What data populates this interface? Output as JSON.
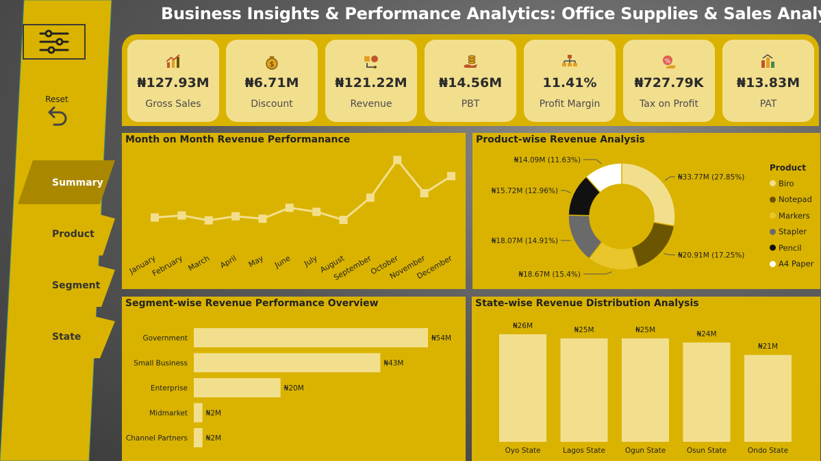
{
  "header": {
    "title": "Business Insights & Performance Analytics: Office Supplies & Sales Analysis"
  },
  "sidebar": {
    "filter_icon": "sliders-icon",
    "reset_label": "Reset",
    "reset_icon": "undo-arrow-icon",
    "nav": [
      {
        "label": "Summary",
        "active": true
      },
      {
        "label": "Product",
        "active": false
      },
      {
        "label": "Segment",
        "active": false
      },
      {
        "label": "State",
        "active": false
      }
    ]
  },
  "kpis": [
    {
      "value": "₦127.93M",
      "label": "Gross Sales",
      "icon": "growth-chart-icon"
    },
    {
      "value": "₦6.71M",
      "label": "Discount",
      "icon": "money-bag-icon"
    },
    {
      "value": "₦121.22M",
      "label": "Revenue",
      "icon": "revenue-flow-icon"
    },
    {
      "value": "₦14.56M",
      "label": "PBT",
      "icon": "coins-hand-icon"
    },
    {
      "value": "11.41%",
      "label": "Profit Margin",
      "icon": "hierarchy-icon"
    },
    {
      "value": "₦727.79K",
      "label": "Tax on Profit",
      "icon": "tax-icon"
    },
    {
      "value": "₦13.83M",
      "label": "PAT",
      "icon": "profit-bars-icon"
    }
  ],
  "colors": {
    "background_accent": "#dab300",
    "card": "#f2df8e",
    "mark": "#f2df8e"
  },
  "chart_data": [
    {
      "type": "line",
      "title": "Month on Month Revenue Performanance",
      "categories": [
        "January",
        "February",
        "March",
        "April",
        "May",
        "June",
        "July",
        "August",
        "September",
        "October",
        "November",
        "December"
      ],
      "values": [
        9.2,
        9.7,
        8.5,
        9.5,
        8.9,
        11.6,
        10.6,
        8.6,
        14.1,
        23.4,
        15.2,
        19.4
      ],
      "ylim": [
        0,
        25
      ],
      "grid": false
    },
    {
      "type": "pie",
      "title": "Product-wise Revenue Analysis",
      "legend_title": "Product",
      "legend_position": "right",
      "series": [
        {
          "name": "Biro",
          "value": 33.77,
          "label": "₦33.77M (27.85%)",
          "color": "#f2df8e"
        },
        {
          "name": "Notepad",
          "value": 20.91,
          "label": "₦20.91M (17.25%)",
          "color": "#6b5500"
        },
        {
          "name": "Markers",
          "value": 18.67,
          "label": "₦18.67M (15.4%)",
          "color": "#e9c62c"
        },
        {
          "name": "Stapler",
          "value": 18.07,
          "label": "₦18.07M (14.91%)",
          "color": "#6a6a6a"
        },
        {
          "name": "Pencil",
          "value": 15.72,
          "label": "₦15.72M (12.96%)",
          "color": "#111111"
        },
        {
          "name": "A4 Paper",
          "value": 14.09,
          "label": "₦14.09M (11.63%)",
          "color": "#ffffff"
        }
      ]
    },
    {
      "type": "bar",
      "orientation": "horizontal",
      "title": "Segment-wise Revenue Performance Overview",
      "categories": [
        "Government",
        "Small Business",
        "Enterprise",
        "Midmarket",
        "Channel Partners"
      ],
      "values": [
        54,
        43,
        20,
        2,
        2
      ],
      "data_labels": [
        "₦54M",
        "₦43M",
        "₦20M",
        "₦2M",
        "₦2M"
      ],
      "xlim": [
        0,
        54
      ]
    },
    {
      "type": "bar",
      "orientation": "vertical",
      "title": "State-wise Revenue Distribution Analysis",
      "categories": [
        "Oyo State",
        "Lagos State",
        "Ogun State",
        "Osun State",
        "Ondo State"
      ],
      "values": [
        26,
        25,
        25,
        24,
        21
      ],
      "data_labels": [
        "₦26M",
        "₦25M",
        "₦25M",
        "₦24M",
        "₦21M"
      ],
      "ylim": [
        0,
        26
      ]
    }
  ]
}
